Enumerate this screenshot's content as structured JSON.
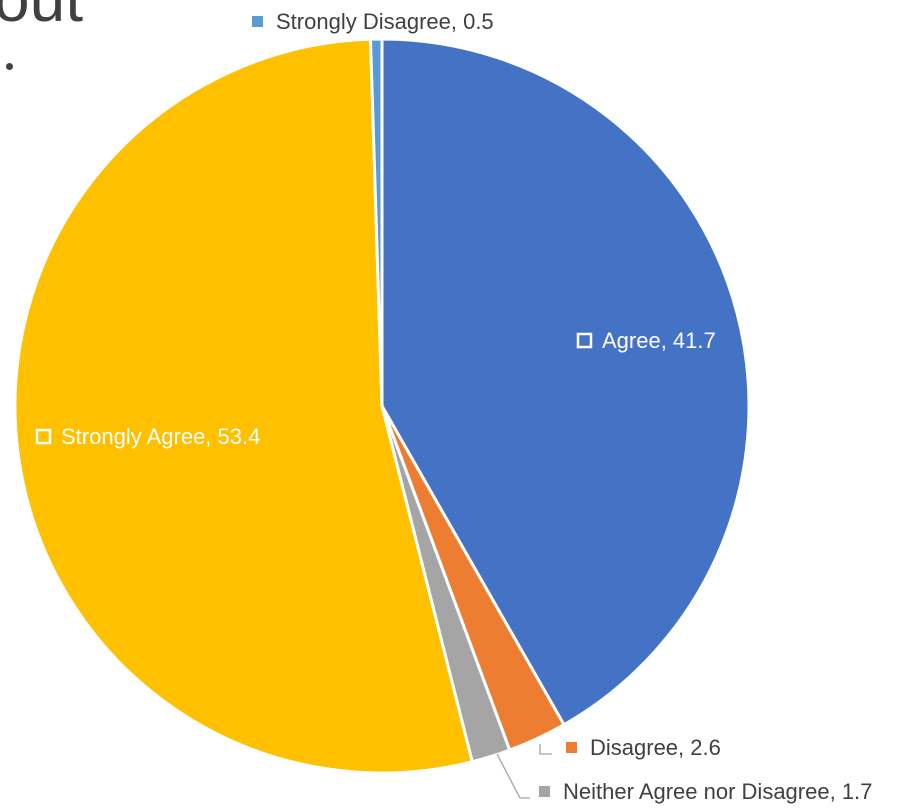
{
  "slide": {
    "heading_fragment": "out"
  },
  "chart_data": {
    "type": "pie",
    "start_angle_deg": 0,
    "direction": "clockwise",
    "slices": [
      {
        "label": "Agree",
        "value": 41.7,
        "color": "#4472C4",
        "label_text": "Agree, 41.7",
        "marker": "outline-white"
      },
      {
        "label": "Disagree",
        "value": 2.6,
        "color": "#ED7D31",
        "label_text": "Disagree, 2.6",
        "marker": "filled",
        "marker_color": "#ED7D31"
      },
      {
        "label": "Neither Agree nor Disagree",
        "value": 1.7,
        "color": "#A5A5A5",
        "label_text": "Neither Agree nor Disagree, 1.7",
        "marker": "filled",
        "marker_color": "#A5A5A5"
      },
      {
        "label": "Strongly Agree",
        "value": 53.4,
        "color": "#FFC000",
        "label_text": "Strongly Agree, 53.4",
        "marker": "outline-white"
      },
      {
        "label": "Strongly Disagree",
        "value": 0.5,
        "color": "#5B9BD5",
        "label_text": "Strongly Disagree, 0.5",
        "marker": "filled",
        "marker_color": "#5B9BD5"
      }
    ],
    "label_color_inside": "#ffffff",
    "label_color_outside": "#404040",
    "slice_border_color": "#ffffff"
  }
}
